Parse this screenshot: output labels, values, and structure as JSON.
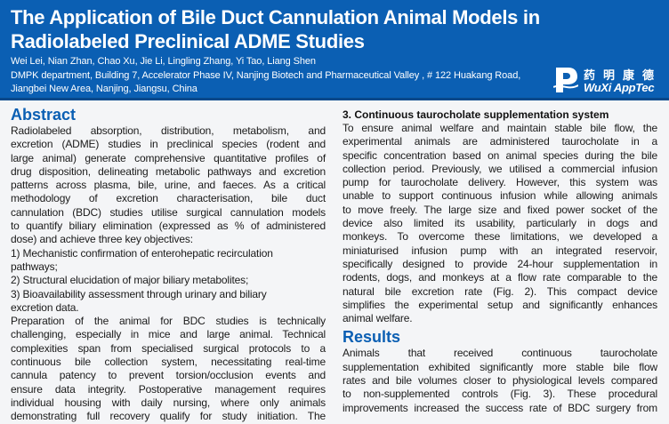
{
  "header": {
    "title_lines": [
      "The Application of Bile Duct Cannulation Animal Models in",
      "Radiolabeled Preclinical ADME Studies"
    ],
    "authors": "Wei Lei, Nian Zhan, Chao Xu, Jie Li, Lingling Zhang, Yi Tao, Liang Shen",
    "affiliation_lines": [
      "DMPK department, Building 7, Accelerator Phase IV, Nanjing Biotech and Pharmaceutical Valley , # 122 Huakang Road,",
      "Jiangbei New Area, Nanjing, Jiangsu, China"
    ],
    "logo": {
      "cn": "药明康德",
      "en": "WuXi AppTec"
    },
    "background_color": "#0b5fb3"
  },
  "abstract": {
    "heading": "Abstract",
    "lines": [
      "Radiolabeled absorption, distribution, metabolism, and",
      "excretion (ADME) studies in preclinical species (rodent and",
      "large animal) generate comprehensive quantitative profiles of",
      "drug disposition, delineating metabolic pathways and excretion",
      "patterns across plasma, bile, urine, and faeces. As a critical",
      "methodology of excretion characterisation, bile duct",
      "cannulation (BDC) studies utilise surgical cannulation models",
      "to quantify biliary elimination (expressed as % of administered",
      "dose) and achieve three key objectives:",
      "1) Mechanistic confirmation of enterohepatic recirculation",
      "pathways;",
      "2) Structural elucidation of major biliary metabolites;",
      "3) Bioavailability assessment through urinary and biliary",
      "excretion data.",
      "Preparation of the animal for BDC studies is technically",
      "challenging, especially in mice and large animal. Technical",
      "complexities span from specialised surgical protocols to a",
      "continuous bile collection system, necessitating real-time",
      "cannula patency to prevent torsion/occlusion events and",
      "ensure data integrity. Postoperative management requires",
      "individual housing with daily nursing, where only animals",
      "demonstrating full recovery qualify for study initiation. The"
    ]
  },
  "section3": {
    "heading": "3. Continuous taurocholate supplementation system",
    "lines": [
      "To ensure animal welfare and maintain stable bile flow, the",
      "experimental animals are administered taurocholate in a",
      "specific concentration based on animal species during the bile",
      "collection period. Previously, we utilised a commercial infusion",
      "pump for taurocholate delivery. However, this system was",
      "unable to support continuous infusion while allowing animals",
      "to move freely. The large size and fixed power socket of the",
      "device also limited its usability, particularly in dogs and",
      "monkeys. To overcome these limitations, we developed a",
      "miniaturised infusion pump with an integrated reservoir,",
      "specifically designed to provide 24-hour supplementation in",
      "rodents, dogs, and monkeys at a flow rate comparable to the",
      "natural bile excretion rate (Fig. 2). This compact device",
      "simplifies the experimental setup and significantly enhances",
      "animal welfare."
    ]
  },
  "results": {
    "heading": "Results",
    "lines": [
      "Animals that received continuous taurocholate",
      "supplementation exhibited significantly more stable bile flow",
      "rates and bile volumes closer to physiological levels compared",
      "to non-supplemented controls (Fig. 3). These procedural",
      "improvements increased the success rate of BDC surgery from"
    ]
  }
}
